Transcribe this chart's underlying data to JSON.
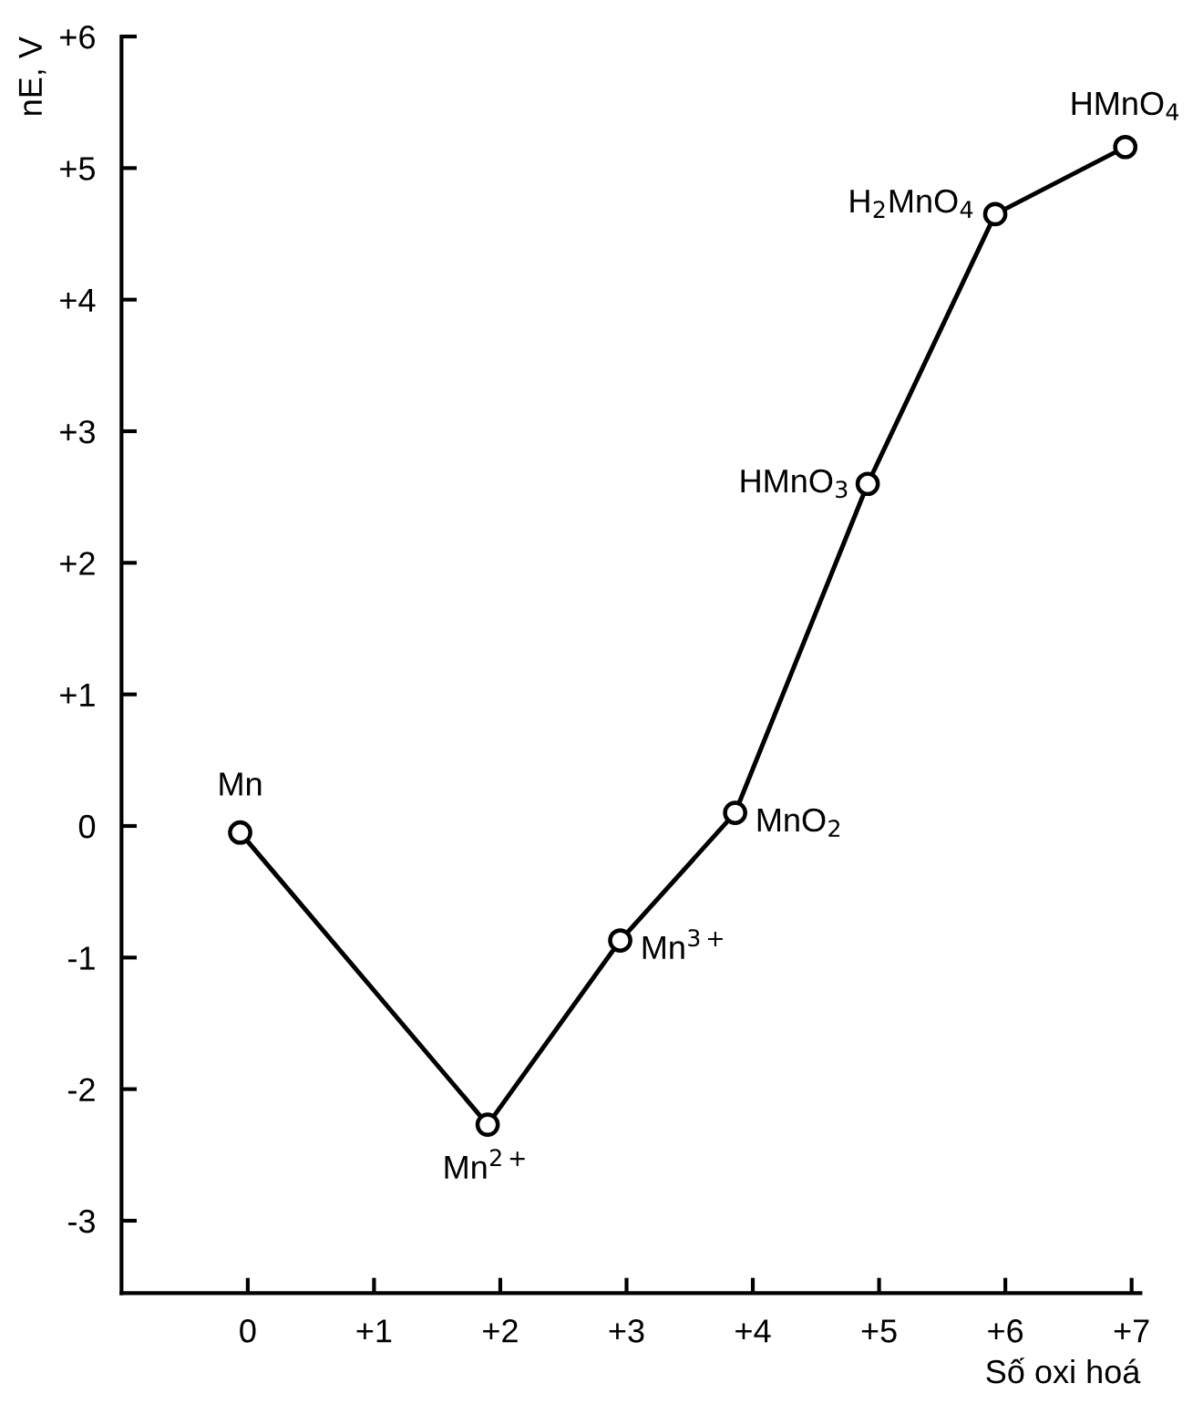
{
  "chart_data": {
    "type": "line",
    "xlabel": "Số oxi hoá",
    "ylabel": "nE, V",
    "x": [
      -0.06,
      1.9,
      2.95,
      3.86,
      4.91,
      5.92,
      6.95
    ],
    "series": [
      {
        "color": "#000000",
        "values": [
          -0.05,
          -2.27,
          -0.87,
          0.1,
          2.6,
          4.65,
          5.16
        ]
      }
    ],
    "marker": "circle",
    "line_style": "solid",
    "grid": false,
    "legend": false,
    "xlim": [
      -1,
      7.07
    ],
    "ylim": [
      -3.55,
      6
    ],
    "xticks": [
      0,
      {
        "value": 1,
        "label": "+1"
      },
      {
        "value": 2,
        "label": "+2"
      },
      {
        "value": 3,
        "label": "+3"
      },
      {
        "value": 4,
        "label": "+4"
      },
      {
        "value": 5,
        "label": "+5"
      },
      {
        "value": 6,
        "label": "+6"
      },
      {
        "value": 7,
        "label": "+7"
      }
    ],
    "yticks": [
      -3,
      -2,
      -1,
      0,
      {
        "value": 1,
        "label": "+1"
      },
      {
        "value": 2,
        "label": "+2"
      },
      {
        "value": 3,
        "label": "+3"
      },
      {
        "value": 4,
        "label": "+4"
      },
      {
        "value": 5,
        "label": "+5"
      },
      {
        "value": 6,
        "label": "+6"
      }
    ],
    "annotations": [
      {
        "text": "Mn",
        "x": -0.06,
        "y": -0.05
      },
      {
        "text": "Mn$^{2+}$",
        "x": 1.9,
        "y": -2.27
      },
      {
        "text": "Mn$^{3+}$",
        "x": 2.95,
        "y": -0.87
      },
      {
        "text": "MnO$_{2}$",
        "x": 3.86,
        "y": 0.1
      },
      {
        "text": "HMnO$_{3}$",
        "x": 4.91,
        "y": 2.6
      },
      {
        "text": "H$_{2}$MnO$_{4}$",
        "x": 5.92,
        "y": 4.65
      },
      {
        "text": "HMnO$_{4}$",
        "x": 6.95,
        "y": 5.16
      }
    ]
  }
}
